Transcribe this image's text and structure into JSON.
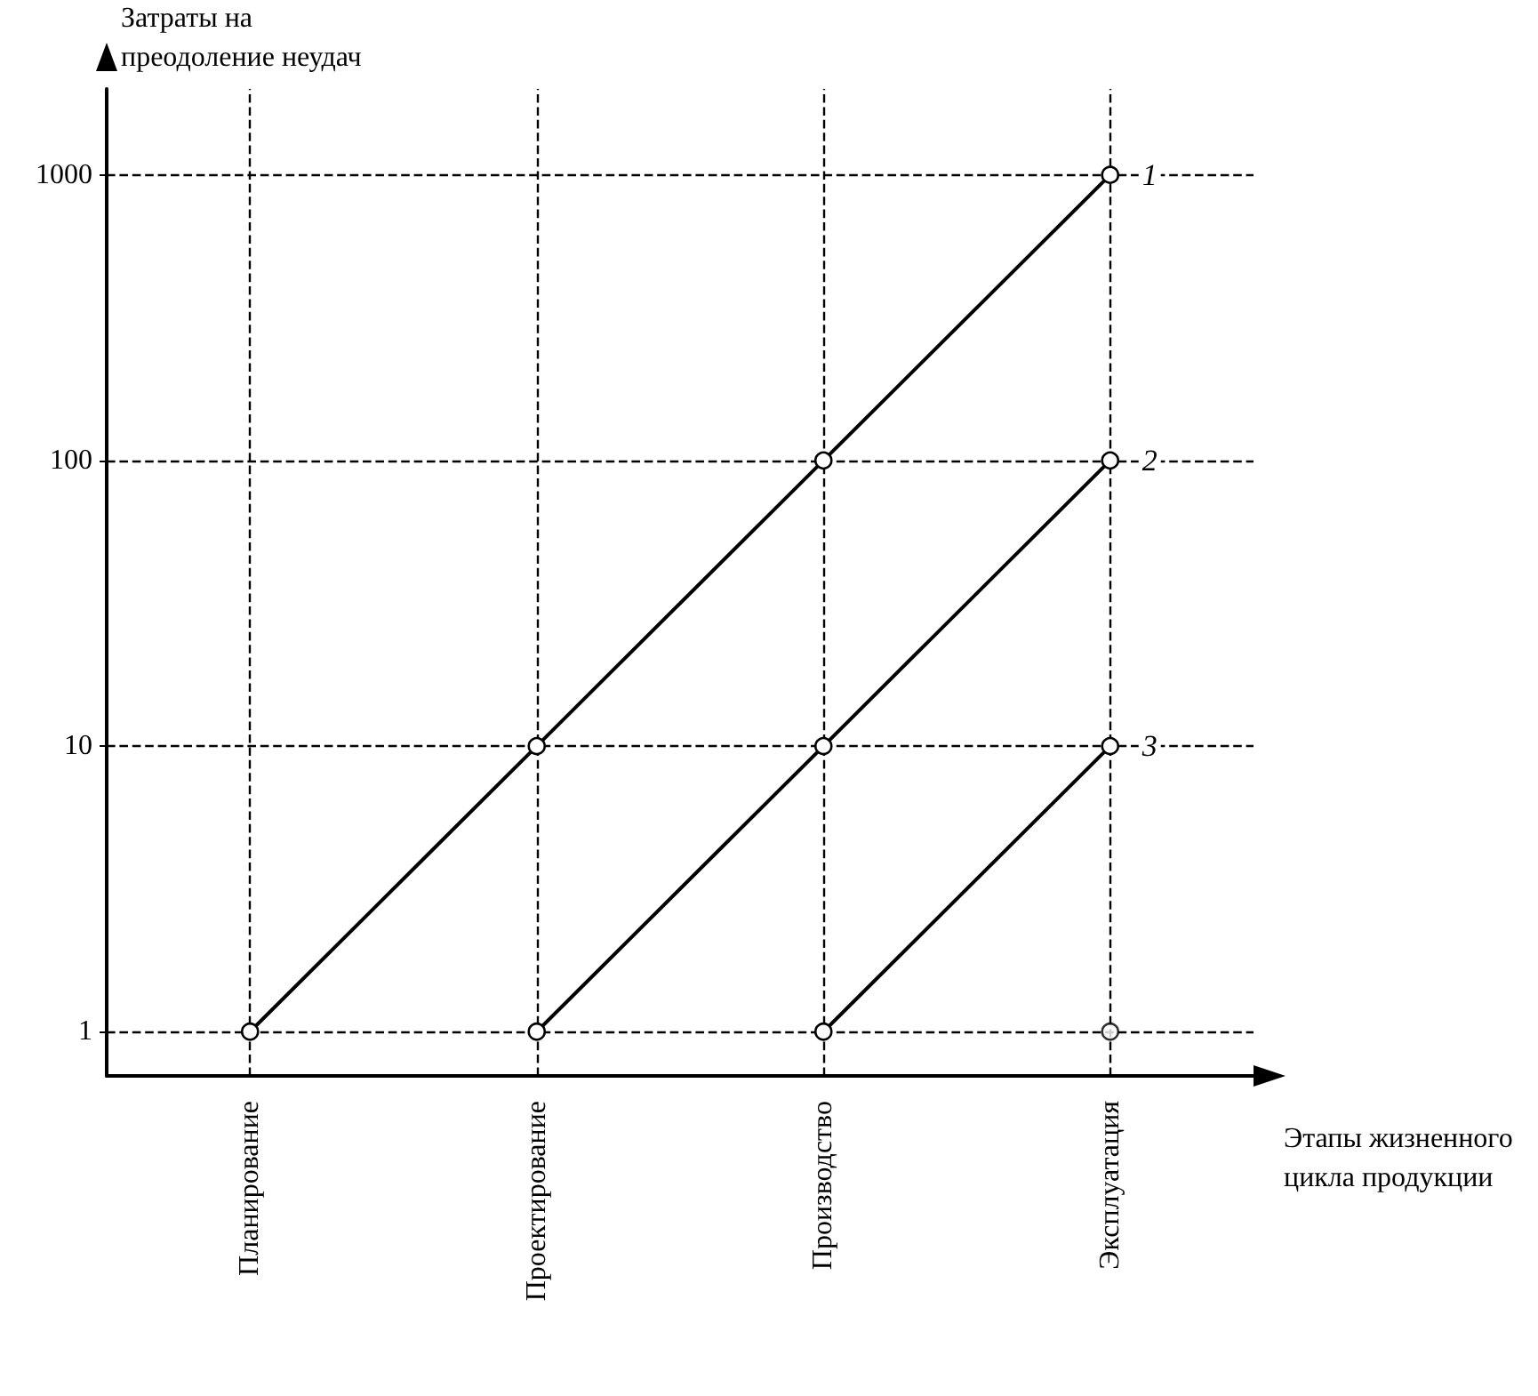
{
  "chart_data": {
    "type": "line",
    "xlabel": "Этапы жизненного цикла продукции",
    "ylabel": "Затраты на преодоление неудач",
    "categories": [
      "Планирование",
      "Проектирование",
      "Производство",
      "Эксплуатация"
    ],
    "series": [
      {
        "name": "1",
        "color": "#000000",
        "values": [
          1,
          10,
          100,
          1000
        ]
      },
      {
        "name": "2",
        "color": "#000000",
        "values": [
          null,
          1,
          10,
          100
        ]
      },
      {
        "name": "3",
        "color": "#000000",
        "values": [
          null,
          null,
          1,
          10
        ]
      },
      {
        "type": "scatter",
        "color": "#000000",
        "values": [
          null,
          null,
          null,
          1
        ]
      }
    ],
    "log": true,
    "ylim": [
      0.7,
      2000
    ],
    "yticks": [
      1,
      10,
      100,
      1000
    ],
    "grid": false,
    "legend": false,
    "marker": "circle",
    "line_style": "solid",
    "ref_lines": [
      {
        "axis": "y",
        "value": 1,
        "color": "#000000",
        "line_style": "dashed"
      },
      {
        "axis": "y",
        "value": 10,
        "color": "#000000",
        "line_style": "dashed"
      },
      {
        "axis": "y",
        "value": 100,
        "color": "#000000",
        "line_style": "dashed"
      },
      {
        "axis": "y",
        "value": 1000,
        "color": "#000000",
        "line_style": "dashed"
      },
      {
        "axis": "x",
        "value": "Планирование",
        "color": "#000000",
        "line_style": "dashed"
      },
      {
        "axis": "x",
        "value": "Проектирование",
        "color": "#000000",
        "line_style": "dashed"
      },
      {
        "axis": "x",
        "value": "Производство",
        "color": "#000000",
        "line_style": "dashed"
      },
      {
        "axis": "x",
        "value": "Эксплуатация",
        "color": "#000000",
        "line_style": "dashed"
      }
    ]
  }
}
